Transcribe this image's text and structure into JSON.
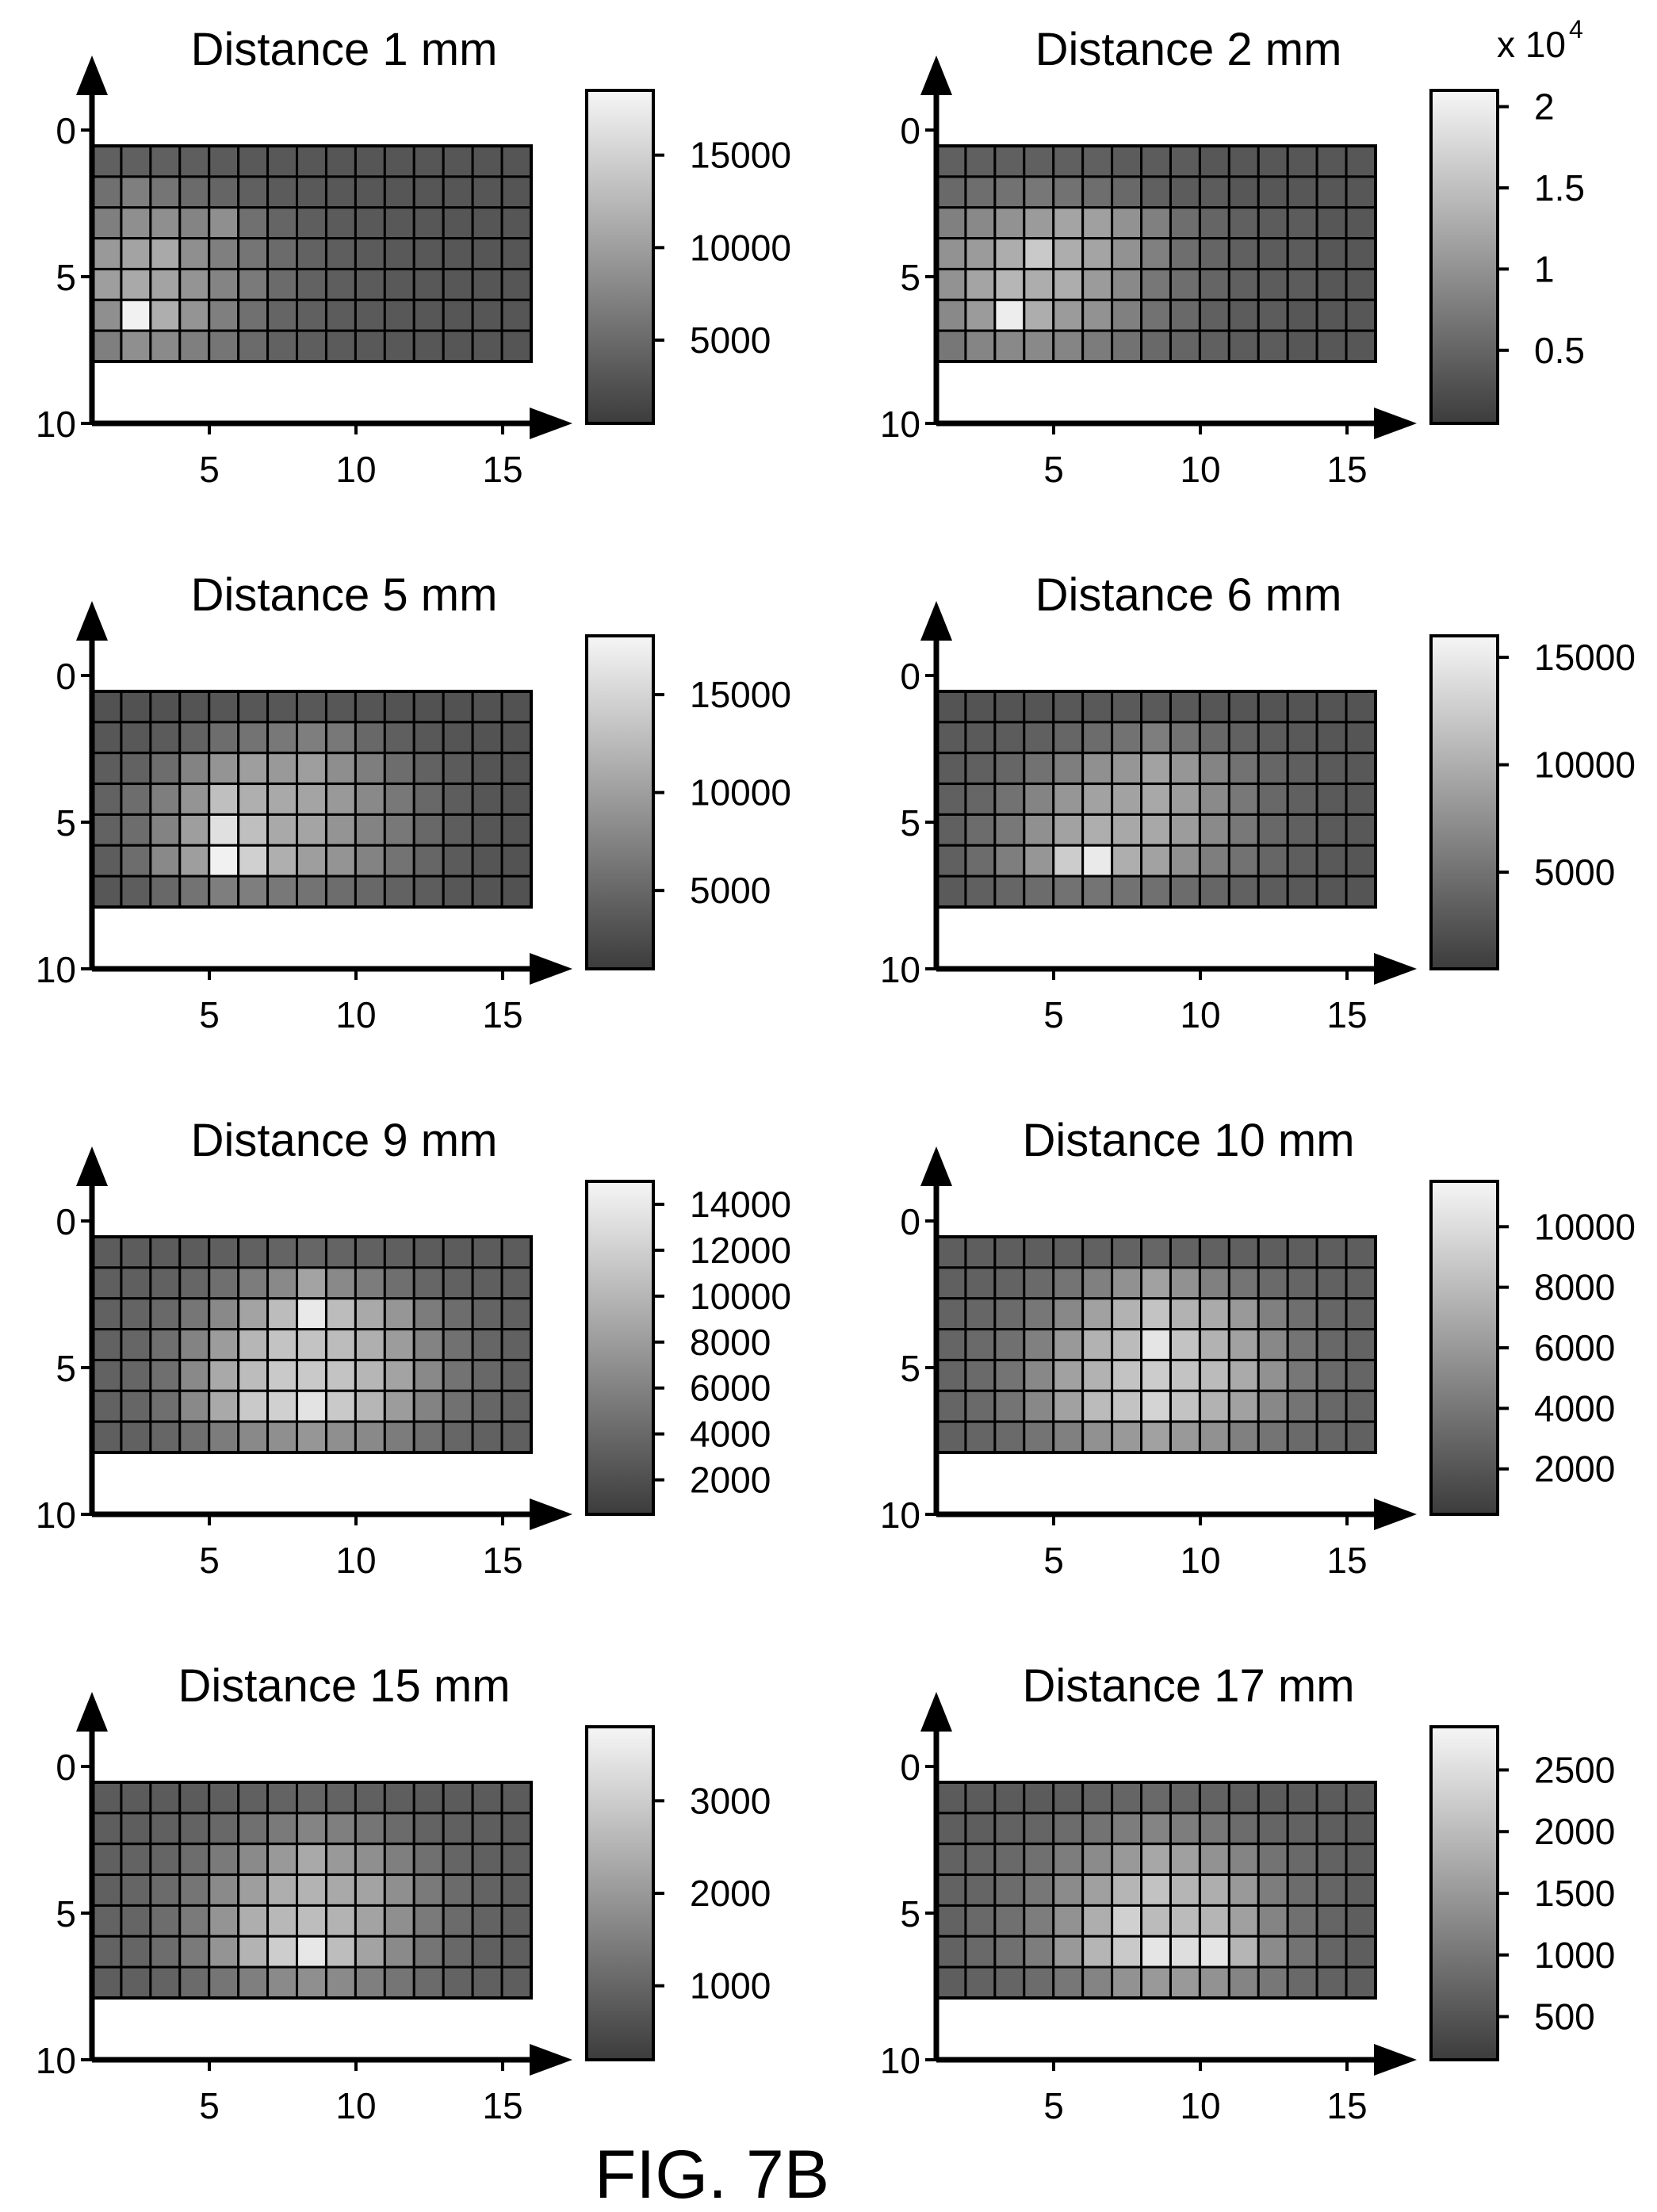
{
  "figure_label": "FIG. 7B",
  "colormap": {
    "low": "#3c3c3c",
    "high": "#f6f6f6",
    "grid_line": "#000000"
  },
  "chart_data": [
    {
      "type": "heatmap",
      "title": "Distance 1 mm",
      "x_ticks": [
        "5",
        "10",
        "15"
      ],
      "y_ticks": [
        "0",
        "5",
        "10"
      ],
      "colorbar_ticks": [
        {
          "value": 15000,
          "label": "15000"
        },
        {
          "value": 10000,
          "label": "10000"
        },
        {
          "value": 5000,
          "label": "5000"
        }
      ],
      "colorbar_multiplier": "",
      "clim": [
        500,
        18500
      ],
      "cells": [
        [
          4000,
          4000,
          4000,
          3800,
          3500,
          3300,
          3200,
          3100,
          3000,
          3000,
          3000,
          3000,
          3000,
          2900,
          2900
        ],
        [
          5500,
          7000,
          6000,
          5000,
          4500,
          4000,
          3500,
          3300,
          3200,
          3100,
          3000,
          3000,
          3000,
          3000,
          2900
        ],
        [
          7000,
          8500,
          8500,
          7500,
          8500,
          5500,
          4500,
          3800,
          3500,
          3300,
          3200,
          3100,
          3000,
          3000,
          3000
        ],
        [
          9500,
          10500,
          11000,
          8500,
          7000,
          6000,
          5000,
          4200,
          3800,
          3500,
          3300,
          3200,
          3100,
          3000,
          3000
        ],
        [
          10000,
          11000,
          10500,
          9000,
          7500,
          6500,
          5000,
          4200,
          3800,
          3500,
          3300,
          3200,
          3100,
          3000,
          3000
        ],
        [
          8500,
          18000,
          11500,
          9000,
          7000,
          5500,
          4500,
          4000,
          3600,
          3400,
          3200,
          3100,
          3000,
          3000,
          3000
        ],
        [
          7000,
          8500,
          8000,
          7000,
          6000,
          5000,
          4200,
          3800,
          3500,
          3300,
          3200,
          3100,
          3000,
          3000,
          2900
        ]
      ]
    },
    {
      "type": "heatmap",
      "title": "Distance 2 mm",
      "x_ticks": [
        "5",
        "10",
        "15"
      ],
      "y_ticks": [
        "0",
        "5",
        "10"
      ],
      "colorbar_ticks": [
        {
          "value": 2,
          "label": "2"
        },
        {
          "value": 1.5,
          "label": "1.5"
        },
        {
          "value": 1,
          "label": "1"
        },
        {
          "value": 0.5,
          "label": "0.5"
        }
      ],
      "colorbar_multiplier": "x 10",
      "colorbar_multiplier_exponent": "4",
      "clim": [
        0.05,
        2.1
      ],
      "cells": [
        [
          0.45,
          0.45,
          0.45,
          0.45,
          0.45,
          0.45,
          0.4,
          0.4,
          0.4,
          0.35,
          0.35,
          0.35,
          0.35,
          0.35,
          0.35
        ],
        [
          0.55,
          0.6,
          0.65,
          0.7,
          0.65,
          0.6,
          0.55,
          0.45,
          0.4,
          0.4,
          0.35,
          0.35,
          0.35,
          0.35,
          0.35
        ],
        [
          0.8,
          0.9,
          1.0,
          1.1,
          1.2,
          1.15,
          1.0,
          0.8,
          0.6,
          0.5,
          0.45,
          0.4,
          0.4,
          0.35,
          0.35
        ],
        [
          1.0,
          1.1,
          1.3,
          1.6,
          1.3,
          1.2,
          1.0,
          0.8,
          0.6,
          0.5,
          0.45,
          0.4,
          0.4,
          0.35,
          0.35
        ],
        [
          1.0,
          1.2,
          1.4,
          1.3,
          1.3,
          1.1,
          0.9,
          0.7,
          0.6,
          0.5,
          0.45,
          0.4,
          0.4,
          0.35,
          0.35
        ],
        [
          0.9,
          1.1,
          2.0,
          1.3,
          1.1,
          1.0,
          0.8,
          0.65,
          0.55,
          0.45,
          0.4,
          0.4,
          0.35,
          0.35,
          0.35
        ],
        [
          0.7,
          0.85,
          0.9,
          0.9,
          0.85,
          0.75,
          0.65,
          0.55,
          0.5,
          0.45,
          0.4,
          0.4,
          0.35,
          0.35,
          0.35
        ]
      ]
    },
    {
      "type": "heatmap",
      "title": "Distance 5 mm",
      "x_ticks": [
        "5",
        "10",
        "15"
      ],
      "y_ticks": [
        "0",
        "5",
        "10"
      ],
      "colorbar_ticks": [
        {
          "value": 15000,
          "label": "15000"
        },
        {
          "value": 10000,
          "label": "10000"
        },
        {
          "value": 5000,
          "label": "5000"
        }
      ],
      "colorbar_multiplier": "",
      "clim": [
        1000,
        18000
      ],
      "cells": [
        [
          3000,
          3000,
          3000,
          3200,
          3400,
          3500,
          3500,
          3600,
          3500,
          3300,
          3100,
          3000,
          3000,
          3000,
          3000
        ],
        [
          3500,
          3600,
          3800,
          4500,
          5500,
          6000,
          6500,
          7000,
          6500,
          5000,
          4200,
          3600,
          3300,
          3100,
          3000
        ],
        [
          4000,
          4500,
          5500,
          7500,
          9000,
          10000,
          9500,
          10000,
          8500,
          7000,
          5500,
          4500,
          3800,
          3300,
          3100
        ],
        [
          4500,
          5500,
          7000,
          9000,
          13000,
          11500,
          11000,
          10500,
          9500,
          8000,
          6500,
          5000,
          4000,
          3400,
          3100
        ],
        [
          4500,
          5500,
          7500,
          10000,
          16000,
          13000,
          11000,
          10500,
          9000,
          7500,
          6500,
          5000,
          4000,
          3400,
          3100
        ],
        [
          4000,
          5500,
          8000,
          10000,
          17500,
          14500,
          11500,
          10000,
          9000,
          7500,
          6000,
          4800,
          3800,
          3300,
          3100
        ],
        [
          3500,
          4000,
          5000,
          6000,
          7000,
          7000,
          6500,
          6000,
          5500,
          5000,
          4500,
          4000,
          3500,
          3200,
          3000
        ]
      ]
    },
    {
      "type": "heatmap",
      "title": "Distance 6 mm",
      "x_ticks": [
        "5",
        "10",
        "15"
      ],
      "y_ticks": [
        "0",
        "5",
        "10"
      ],
      "colorbar_ticks": [
        {
          "value": 15000,
          "label": "15000"
        },
        {
          "value": 10000,
          "label": "10000"
        },
        {
          "value": 5000,
          "label": "5000"
        }
      ],
      "colorbar_multiplier": "",
      "clim": [
        500,
        16000
      ],
      "cells": [
        [
          2500,
          2500,
          2500,
          2600,
          2800,
          2900,
          3000,
          3000,
          2900,
          2700,
          2600,
          2500,
          2500,
          2500,
          2500
        ],
        [
          3000,
          3000,
          3200,
          3500,
          4000,
          4500,
          5000,
          6000,
          5000,
          4200,
          3600,
          3200,
          2900,
          2700,
          2600
        ],
        [
          3200,
          3500,
          4000,
          5000,
          6000,
          7500,
          8000,
          9000,
          8000,
          6500,
          5000,
          4000,
          3400,
          3000,
          2800
        ],
        [
          3500,
          4000,
          5000,
          6500,
          8000,
          9000,
          9000,
          9500,
          8500,
          7000,
          5500,
          4200,
          3500,
          3000,
          2800
        ],
        [
          3500,
          4500,
          5500,
          7500,
          9000,
          10000,
          9500,
          9500,
          8500,
          7000,
          5500,
          4200,
          3500,
          3000,
          2800
        ],
        [
          3500,
          4500,
          6000,
          8000,
          12500,
          15000,
          10000,
          9000,
          7500,
          6000,
          5000,
          4000,
          3300,
          2900,
          2700
        ],
        [
          3000,
          3500,
          4000,
          4500,
          5000,
          5200,
          5000,
          4800,
          4500,
          4000,
          3600,
          3200,
          2900,
          2700,
          2600
        ]
      ]
    },
    {
      "type": "heatmap",
      "title": "Distance 9 mm",
      "x_ticks": [
        "5",
        "10",
        "15"
      ],
      "y_ticks": [
        "0",
        "5",
        "10"
      ],
      "colorbar_ticks": [
        {
          "value": 14000,
          "label": "14000"
        },
        {
          "value": 12000,
          "label": "12000"
        },
        {
          "value": 10000,
          "label": "10000"
        },
        {
          "value": 8000,
          "label": "8000"
        },
        {
          "value": 6000,
          "label": "6000"
        },
        {
          "value": 4000,
          "label": "4000"
        },
        {
          "value": 2000,
          "label": "2000"
        }
      ],
      "colorbar_multiplier": "",
      "clim": [
        500,
        15000
      ],
      "cells": [
        [
          3000,
          3000,
          3000,
          3000,
          3200,
          3400,
          3600,
          3800,
          3600,
          3400,
          3200,
          3000,
          3000,
          3000,
          3000
        ],
        [
          3200,
          3200,
          3400,
          3800,
          4500,
          5500,
          6500,
          8500,
          6500,
          5500,
          4500,
          3800,
          3400,
          3200,
          3100
        ],
        [
          3400,
          3600,
          4000,
          5000,
          6500,
          8500,
          10500,
          14000,
          10500,
          9000,
          7500,
          5500,
          4300,
          3600,
          3300
        ],
        [
          3500,
          3800,
          4500,
          6000,
          8000,
          10000,
          11000,
          11000,
          10500,
          9500,
          8000,
          6000,
          4600,
          3800,
          3400
        ],
        [
          3500,
          3800,
          4500,
          6500,
          9000,
          10500,
          11500,
          11500,
          11000,
          10000,
          8500,
          6500,
          4800,
          3900,
          3400
        ],
        [
          3500,
          3800,
          4500,
          6500,
          9000,
          11500,
          12000,
          13500,
          11500,
          10000,
          8000,
          6000,
          4600,
          3800,
          3400
        ],
        [
          3200,
          3400,
          3800,
          4500,
          5500,
          6500,
          7000,
          7500,
          7000,
          6500,
          5500,
          4500,
          3800,
          3400,
          3200
        ]
      ]
    },
    {
      "type": "heatmap",
      "title": "Distance 10 mm",
      "x_ticks": [
        "5",
        "10",
        "15"
      ],
      "y_ticks": [
        "0",
        "5",
        "10"
      ],
      "colorbar_ticks": [
        {
          "value": 10000,
          "label": "10000"
        },
        {
          "value": 8000,
          "label": "8000"
        },
        {
          "value": 6000,
          "label": "6000"
        },
        {
          "value": 4000,
          "label": "4000"
        },
        {
          "value": 2000,
          "label": "2000"
        }
      ],
      "colorbar_multiplier": "",
      "clim": [
        500,
        11500
      ],
      "cells": [
        [
          2500,
          2500,
          2500,
          2500,
          2600,
          2700,
          2800,
          3000,
          2800,
          2700,
          2600,
          2500,
          2500,
          2500,
          2500
        ],
        [
          2600,
          2700,
          2800,
          3200,
          3800,
          4500,
          5500,
          6500,
          5500,
          4500,
          3800,
          3200,
          2900,
          2700,
          2600
        ],
        [
          2800,
          3000,
          3300,
          4000,
          5000,
          6500,
          7500,
          8500,
          7500,
          7000,
          6000,
          4500,
          3500,
          3000,
          2800
        ],
        [
          2900,
          3200,
          3600,
          4500,
          6000,
          7500,
          8000,
          10500,
          8500,
          7500,
          6500,
          5000,
          3800,
          3100,
          2800
        ],
        [
          2900,
          3200,
          3800,
          5000,
          6500,
          7500,
          8500,
          9000,
          8500,
          8000,
          7000,
          5500,
          4000,
          3200,
          2900
        ],
        [
          2900,
          3200,
          3800,
          5000,
          6500,
          8000,
          8500,
          9500,
          8500,
          7500,
          6500,
          5000,
          3800,
          3100,
          2800
        ],
        [
          2700,
          2900,
          3200,
          3800,
          4500,
          5500,
          6000,
          6500,
          6000,
          5500,
          4500,
          3800,
          3200,
          2900,
          2700
        ]
      ]
    },
    {
      "type": "heatmap",
      "title": "Distance 15 mm",
      "x_ticks": [
        "5",
        "10",
        "15"
      ],
      "y_ticks": [
        "0",
        "5",
        "10"
      ],
      "colorbar_ticks": [
        {
          "value": 3000,
          "label": "3000"
        },
        {
          "value": 2000,
          "label": "2000"
        },
        {
          "value": 1000,
          "label": "1000"
        }
      ],
      "colorbar_multiplier": "",
      "clim": [
        200,
        3800
      ],
      "cells": [
        [
          800,
          800,
          800,
          800,
          850,
          900,
          950,
          1000,
          950,
          900,
          850,
          800,
          800,
          800,
          800
        ],
        [
          850,
          850,
          900,
          950,
          1050,
          1200,
          1400,
          1600,
          1500,
          1300,
          1100,
          950,
          900,
          850,
          800
        ],
        [
          900,
          950,
          1000,
          1150,
          1400,
          1700,
          2000,
          2300,
          2000,
          1800,
          1500,
          1200,
          1000,
          900,
          850
        ],
        [
          900,
          1000,
          1100,
          1300,
          1700,
          2100,
          2400,
          2500,
          2300,
          2200,
          1800,
          1400,
          1100,
          950,
          850
        ],
        [
          950,
          1000,
          1150,
          1400,
          1900,
          2400,
          2600,
          2700,
          2500,
          2200,
          1800,
          1400,
          1100,
          950,
          850
        ],
        [
          950,
          1000,
          1150,
          1400,
          1900,
          2500,
          3000,
          3500,
          2700,
          2200,
          1700,
          1300,
          1050,
          900,
          850
        ],
        [
          850,
          900,
          950,
          1100,
          1300,
          1500,
          1700,
          1800,
          1700,
          1500,
          1300,
          1100,
          950,
          900,
          850
        ]
      ]
    },
    {
      "type": "heatmap",
      "title": "Distance 17 mm",
      "x_ticks": [
        "5",
        "10",
        "15"
      ],
      "y_ticks": [
        "0",
        "5",
        "10"
      ],
      "colorbar_ticks": [
        {
          "value": 2500,
          "label": "2500"
        },
        {
          "value": 2000,
          "label": "2000"
        },
        {
          "value": 1500,
          "label": "1500"
        },
        {
          "value": 1000,
          "label": "1000"
        },
        {
          "value": 500,
          "label": "500"
        }
      ],
      "colorbar_multiplier": "",
      "clim": [
        150,
        2850
      ],
      "cells": [
        [
          600,
          600,
          600,
          600,
          650,
          700,
          750,
          800,
          750,
          700,
          650,
          600,
          600,
          600,
          600
        ],
        [
          650,
          650,
          700,
          750,
          850,
          950,
          1100,
          1200,
          1100,
          1000,
          850,
          750,
          700,
          650,
          600
        ],
        [
          700,
          750,
          800,
          900,
          1100,
          1300,
          1500,
          1700,
          1600,
          1400,
          1200,
          950,
          800,
          700,
          650
        ],
        [
          700,
          750,
          850,
          1000,
          1300,
          1600,
          1900,
          2100,
          1900,
          1800,
          1500,
          1100,
          850,
          750,
          650
        ],
        [
          700,
          800,
          900,
          1100,
          1400,
          1800,
          2300,
          2000,
          2000,
          1900,
          1600,
          1200,
          900,
          750,
          650
        ],
        [
          700,
          800,
          900,
          1100,
          1500,
          1900,
          2200,
          2600,
          2500,
          2600,
          1900,
          1300,
          950,
          750,
          650
        ],
        [
          650,
          700,
          750,
          850,
          1000,
          1200,
          1400,
          1500,
          1500,
          1400,
          1200,
          1000,
          800,
          700,
          650
        ]
      ]
    }
  ]
}
